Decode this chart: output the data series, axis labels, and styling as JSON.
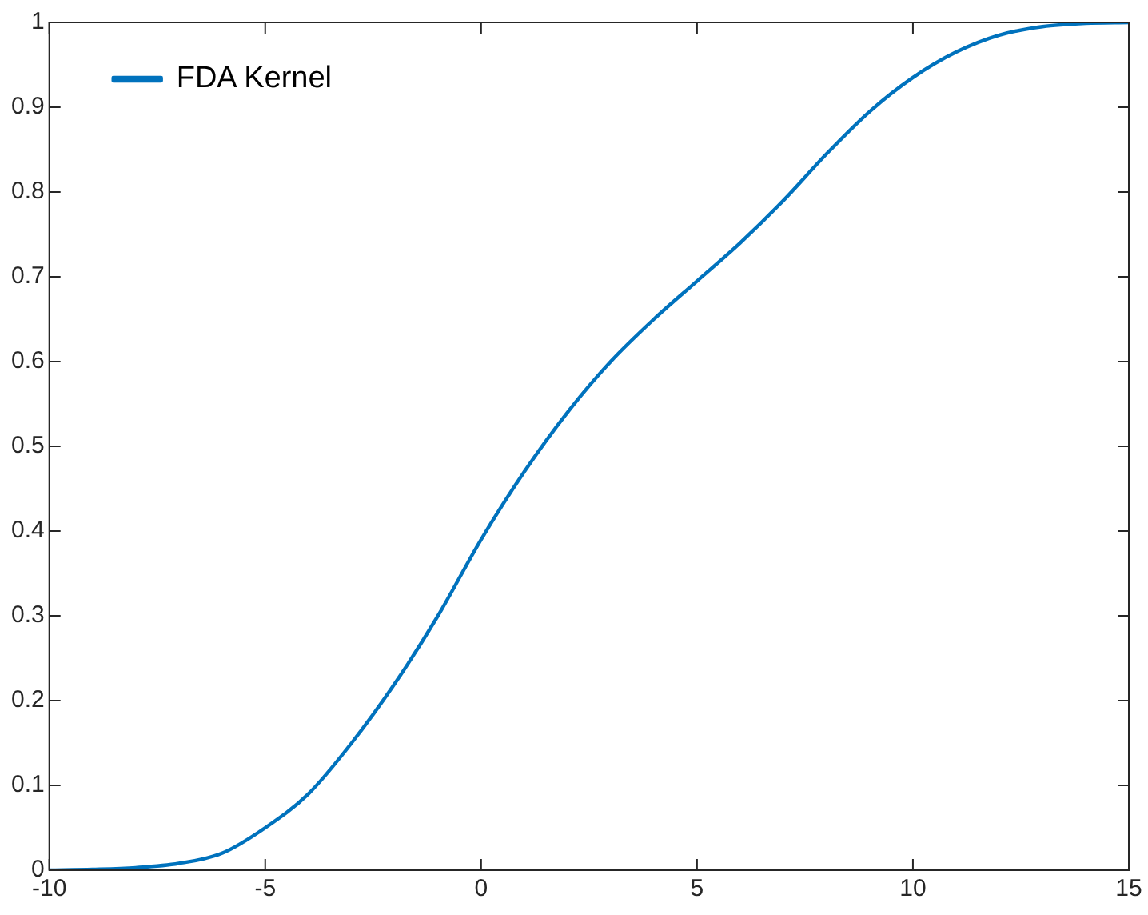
{
  "chart_data": {
    "type": "line",
    "x": [
      -10,
      -9,
      -8,
      -7,
      -6,
      -5,
      -4,
      -3,
      -2,
      -1,
      0,
      1,
      2,
      3,
      4,
      5,
      6,
      7,
      8,
      9,
      10,
      11,
      12,
      13,
      14,
      15
    ],
    "series": [
      {
        "name": "FDA Kernel",
        "color": "#0072bd",
        "values": [
          0,
          0.001,
          0.003,
          0.008,
          0.02,
          0.05,
          0.09,
          0.15,
          0.22,
          0.3,
          0.39,
          0.47,
          0.54,
          0.6,
          0.65,
          0.695,
          0.74,
          0.79,
          0.845,
          0.895,
          0.935,
          0.965,
          0.985,
          0.995,
          0.999,
          1
        ]
      }
    ],
    "xlim": [
      -10,
      15
    ],
    "xticks": [
      -10,
      -5,
      0,
      5,
      10,
      15
    ],
    "ylim": [
      0,
      1
    ],
    "yticks": [
      0,
      0.1,
      0.2,
      0.3,
      0.4,
      0.5,
      0.6,
      0.7,
      0.8,
      0.9,
      1
    ],
    "grid": false,
    "legend": "top left",
    "marker": "none",
    "line_style": "solid"
  }
}
